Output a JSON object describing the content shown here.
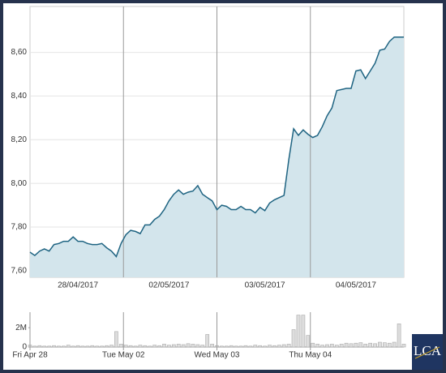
{
  "chart_data": [
    {
      "type": "area",
      "color": "#1f6482",
      "fill": "#d3e5ec",
      "x": [
        0,
        1,
        2,
        3,
        4,
        5,
        6,
        7,
        8,
        9,
        10,
        11,
        12,
        13,
        14,
        15,
        16,
        17,
        18,
        19,
        20,
        21,
        22,
        23,
        24,
        25,
        26,
        27,
        28,
        29,
        30,
        31,
        32,
        33,
        34,
        35,
        36,
        37,
        38,
        39,
        40,
        41,
        42,
        43,
        44,
        45,
        46,
        47,
        48,
        49,
        50,
        51,
        52,
        53,
        54,
        55,
        56,
        57,
        58,
        59,
        60,
        61,
        62,
        63,
        64,
        65,
        66,
        67,
        68,
        69,
        70,
        71,
        72,
        73,
        74,
        75,
        76,
        77,
        78
      ],
      "values": [
        7.685,
        7.67,
        7.69,
        7.7,
        7.69,
        7.72,
        7.725,
        7.735,
        7.735,
        7.755,
        7.735,
        7.735,
        7.725,
        7.72,
        7.72,
        7.725,
        7.705,
        7.69,
        7.665,
        7.725,
        7.765,
        7.785,
        7.78,
        7.77,
        7.81,
        7.81,
        7.835,
        7.85,
        7.88,
        7.92,
        7.95,
        7.97,
        7.95,
        7.96,
        7.965,
        7.99,
        7.95,
        7.935,
        7.92,
        7.88,
        7.9,
        7.895,
        7.88,
        7.88,
        7.895,
        7.88,
        7.88,
        7.865,
        7.89,
        7.875,
        7.91,
        7.925,
        7.935,
        7.945,
        8.11,
        8.25,
        8.22,
        8.245,
        8.225,
        8.21,
        8.22,
        8.26,
        8.31,
        8.345,
        8.425,
        8.43,
        8.435,
        8.435,
        8.515,
        8.52,
        8.48,
        8.515,
        8.55,
        8.61,
        8.615,
        8.65,
        8.67,
        8.67,
        8.67
      ],
      "xlim": [
        0,
        78
      ],
      "ylim": [
        7.57,
        8.81
      ],
      "yticks": [
        {
          "value": 7.6,
          "label": "7,60"
        },
        {
          "value": 7.8,
          "label": "7,80"
        },
        {
          "value": 8.0,
          "label": "8,00"
        },
        {
          "value": 8.2,
          "label": "8,20"
        },
        {
          "value": 8.4,
          "label": "8,40"
        },
        {
          "value": 8.6,
          "label": "8,60"
        }
      ],
      "xticks": [
        {
          "value": 10,
          "label": "28/04/2017"
        },
        {
          "value": 29,
          "label": "02/05/2017"
        },
        {
          "value": 49,
          "label": "03/05/2017"
        },
        {
          "value": 68,
          "label": "04/05/2017"
        }
      ],
      "day_lines": [
        19.5,
        39,
        58.5
      ],
      "grid": true
    },
    {
      "type": "bar",
      "color": "#dddddd",
      "values": [
        200000,
        100000,
        150000,
        100000,
        100000,
        150000,
        100000,
        100000,
        200000,
        100000,
        150000,
        100000,
        100000,
        150000,
        100000,
        100000,
        150000,
        200000,
        1600000,
        300000,
        200000,
        150000,
        100000,
        200000,
        150000,
        100000,
        200000,
        150000,
        300000,
        200000,
        250000,
        300000,
        250000,
        350000,
        300000,
        250000,
        200000,
        1300000,
        300000,
        150000,
        100000,
        100000,
        150000,
        100000,
        100000,
        150000,
        100000,
        200000,
        150000,
        100000,
        200000,
        150000,
        200000,
        250000,
        300000,
        1800000,
        3300000,
        3300000,
        1200000,
        400000,
        300000,
        200000,
        250000,
        300000,
        200000,
        300000,
        400000,
        350000,
        400000,
        450000,
        300000,
        400000,
        350000,
        500000,
        450000,
        400000,
        500000,
        2400000,
        300000
      ],
      "xlim": [
        0,
        78
      ],
      "ylim": [
        0,
        3600000
      ],
      "yticks": [
        0,
        {
          "value": 2000000,
          "label": "2M"
        }
      ],
      "xticks": [
        {
          "value": 0,
          "label": "Fri Apr 28"
        },
        {
          "value": 19.5,
          "label": "Tue May 02"
        },
        {
          "value": 39,
          "label": "Wed May 03"
        },
        {
          "value": 58.5,
          "label": "Thu May 04"
        }
      ]
    }
  ],
  "logo": "LCA"
}
